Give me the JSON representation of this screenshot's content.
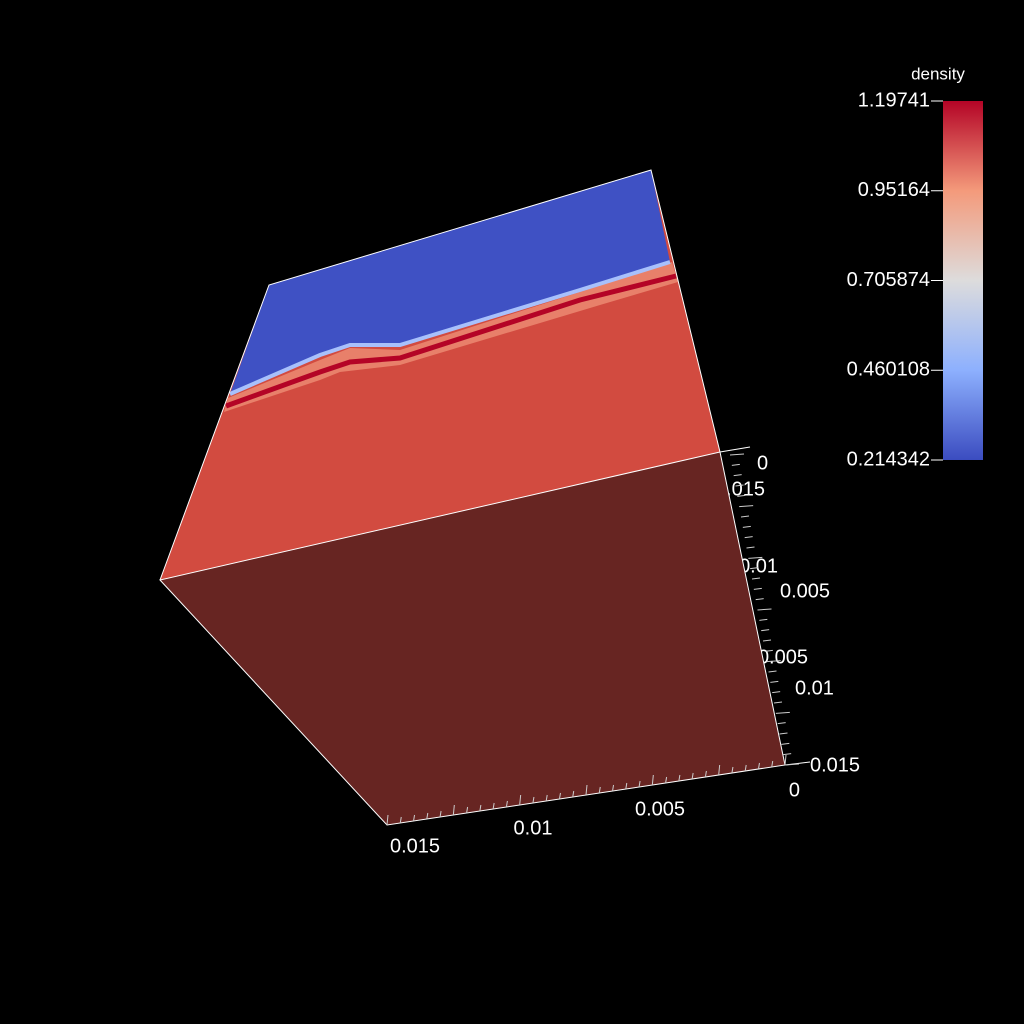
{
  "colorbar": {
    "title": "density",
    "ticks": [
      "1.19741",
      "0.95164",
      "0.705874",
      "0.460108",
      "0.214342"
    ]
  },
  "axes": {
    "bottom": [
      "0.015",
      "0.01",
      "0.005"
    ],
    "right_outer": [
      "0",
      "0.005",
      "0.01",
      "0.015"
    ],
    "right_inner": [
      "0.015",
      "0.01",
      "0.005",
      "0"
    ]
  }
}
